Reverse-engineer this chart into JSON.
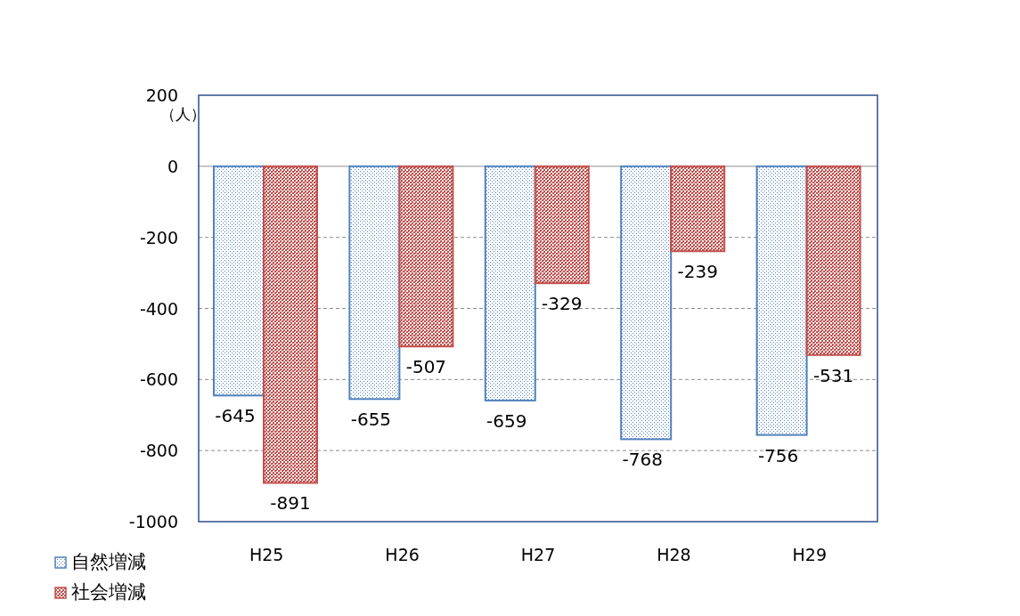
{
  "chart_data": {
    "type": "bar",
    "ylabel": "（人）",
    "categories": [
      "H25",
      "H26",
      "H27",
      "H28",
      "H29"
    ],
    "series": [
      {
        "name": "自然増減",
        "color": "#4f81bd",
        "values": [
          -645,
          -655,
          -659,
          -768,
          -756
        ]
      },
      {
        "name": "社会増減",
        "color": "#c0504d",
        "values": [
          -891,
          -507,
          -329,
          -239,
          -531
        ]
      }
    ],
    "ylim": [
      -1000,
      200
    ],
    "yticks": [
      -1000,
      -800,
      -600,
      -400,
      -200,
      0,
      200
    ],
    "grid": "y",
    "legend": "bottom left",
    "data_labels": true
  }
}
